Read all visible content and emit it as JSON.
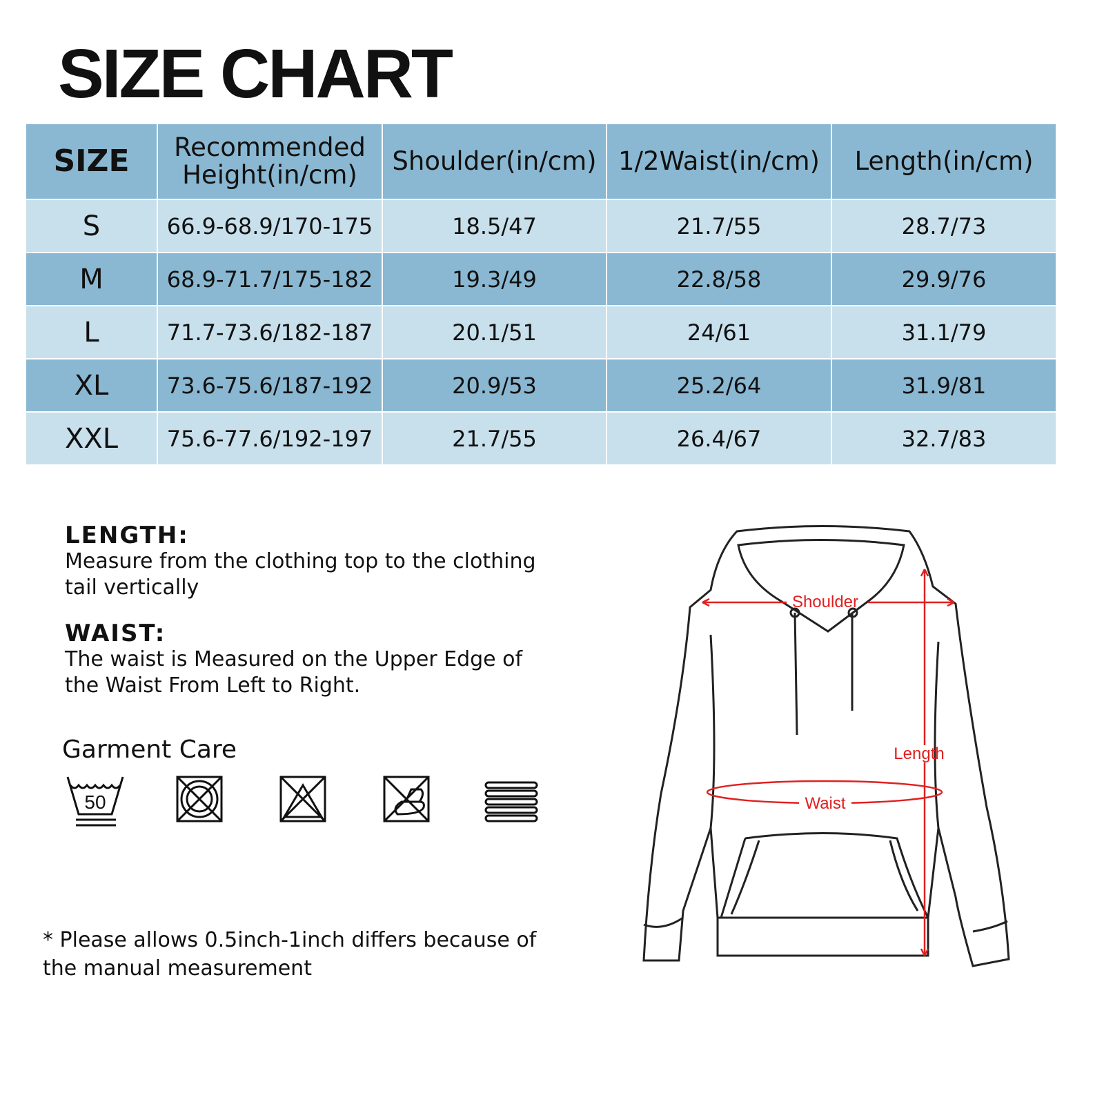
{
  "title": "SIZE CHART",
  "table": {
    "headers": [
      "SIZE",
      "Recommended Height(in/cm)",
      "Shoulder(in/cm)",
      "1/2Waist(in/cm)",
      "Length(in/cm)"
    ],
    "rows": [
      [
        "S",
        "66.9-68.9/170-175",
        "18.5/47",
        "21.7/55",
        "28.7/73"
      ],
      [
        "M",
        "68.9-71.7/175-182",
        "19.3/49",
        "22.8/58",
        "29.9/76"
      ],
      [
        "L",
        "71.7-73.6/182-187",
        "20.1/51",
        "24/61",
        "31.1/79"
      ],
      [
        "XL",
        "73.6-75.6/187-192",
        "20.9/53",
        "25.2/64",
        "31.9/81"
      ],
      [
        "XXL",
        "75.6-77.6/192-197",
        "21.7/55",
        "26.4/67",
        "32.7/83"
      ]
    ],
    "header_color": "#8ab8d2",
    "light_row_color": "#c8e0ec"
  },
  "length": {
    "heading": "LENGTH:",
    "text": "Measure from the clothing top to the clothing tail vertically"
  },
  "waist": {
    "heading": "WAIST:",
    "text": "The waist is Measured on the Upper Edge of the Waist From Left to Right."
  },
  "care": {
    "title": "Garment Care",
    "icons": [
      "wash-50-gentle-icon",
      "do-not-tumble-dry-icon",
      "do-not-bleach-icon",
      "do-not-iron-icon",
      "dry-flat-icon"
    ],
    "wash_temp": "50"
  },
  "note": "* Please allows 0.5inch-1inch differs because of the manual measurement",
  "diagram": {
    "shoulder": "Shoulder",
    "length": "Length",
    "waist": "Waist",
    "accent": "#e02020"
  }
}
